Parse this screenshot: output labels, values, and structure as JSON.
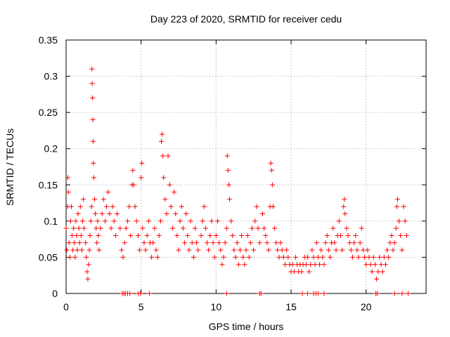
{
  "chart_data": {
    "type": "scatter",
    "title": "Day 223 of 2020, SRMTID for receiver cedu",
    "xlabel": "GPS time / hours",
    "ylabel": "SRMTID / TECUs",
    "xlim": [
      0,
      24
    ],
    "ylim": [
      0,
      0.35
    ],
    "xticks": [
      0,
      5,
      10,
      15,
      20
    ],
    "xtick_labels": [
      "0",
      "5",
      "10",
      "15",
      "20"
    ],
    "yticks": [
      0,
      0.05,
      0.1,
      0.15,
      0.2,
      0.25,
      0.3,
      0.35
    ],
    "ytick_labels": [
      "0",
      "0.05",
      "0.1",
      "0.15",
      "0.2",
      "0.25",
      "0.3",
      "0.35"
    ],
    "grid": true,
    "marker": "plus",
    "color": "#ff0000",
    "series": [
      {
        "name": "SRMTID",
        "points": [
          [
            0.0,
            0.09
          ],
          [
            0.05,
            0.06
          ],
          [
            0.1,
            0.12
          ],
          [
            0.12,
            0.16
          ],
          [
            0.15,
            0.14
          ],
          [
            0.2,
            0.07
          ],
          [
            0.25,
            0.05
          ],
          [
            0.3,
            0.1
          ],
          [
            0.35,
            0.12
          ],
          [
            0.4,
            0.08
          ],
          [
            0.45,
            0.06
          ],
          [
            0.5,
            0.09
          ],
          [
            0.55,
            0.07
          ],
          [
            0.6,
            0.05
          ],
          [
            0.65,
            0.1
          ],
          [
            0.7,
            0.08
          ],
          [
            0.75,
            0.06
          ],
          [
            0.8,
            0.11
          ],
          [
            0.85,
            0.09
          ],
          [
            0.9,
            0.07
          ],
          [
            0.95,
            0.12
          ],
          [
            1.0,
            0.08
          ],
          [
            1.05,
            0.06
          ],
          [
            1.1,
            0.1
          ],
          [
            1.15,
            0.13
          ],
          [
            1.2,
            0.09
          ],
          [
            1.3,
            0.07
          ],
          [
            1.35,
            0.05
          ],
          [
            1.4,
            0.03
          ],
          [
            1.45,
            0.02
          ],
          [
            1.5,
            0.04
          ],
          [
            1.55,
            0.06
          ],
          [
            1.6,
            0.08
          ],
          [
            1.65,
            0.1
          ],
          [
            1.7,
            0.12
          ],
          [
            1.72,
            0.31
          ],
          [
            1.74,
            0.29
          ],
          [
            1.76,
            0.27
          ],
          [
            1.78,
            0.24
          ],
          [
            1.8,
            0.21
          ],
          [
            1.82,
            0.18
          ],
          [
            1.85,
            0.16
          ],
          [
            1.9,
            0.13
          ],
          [
            1.95,
            0.11
          ],
          [
            2.0,
            0.09
          ],
          [
            2.05,
            0.07
          ],
          [
            2.1,
            0.1
          ],
          [
            2.15,
            0.08
          ],
          [
            2.2,
            0.06
          ],
          [
            2.3,
            0.09
          ],
          [
            2.4,
            0.11
          ],
          [
            2.5,
            0.13
          ],
          [
            2.6,
            0.1
          ],
          [
            2.7,
            0.12
          ],
          [
            2.8,
            0.14
          ],
          [
            2.9,
            0.11
          ],
          [
            3.0,
            0.09
          ],
          [
            3.1,
            0.12
          ],
          [
            3.2,
            0.1
          ],
          [
            3.3,
            0.08
          ],
          [
            3.4,
            0.11
          ],
          [
            3.6,
            0.09
          ],
          [
            3.7,
            0.06
          ],
          [
            3.8,
            0.05
          ],
          [
            3.9,
            0.07
          ],
          [
            4.0,
            0.09
          ],
          [
            4.1,
            0.1
          ],
          [
            4.2,
            0.12
          ],
          [
            4.3,
            0.08
          ],
          [
            4.4,
            0.15
          ],
          [
            4.45,
            0.17
          ],
          [
            4.5,
            0.15
          ],
          [
            4.6,
            0.12
          ],
          [
            4.7,
            0.1
          ],
          [
            4.8,
            0.08
          ],
          [
            4.9,
            0.06
          ],
          [
            5.0,
            0.16
          ],
          [
            5.05,
            0.18
          ],
          [
            5.1,
            0.09
          ],
          [
            5.2,
            0.07
          ],
          [
            5.3,
            0.06
          ],
          [
            5.4,
            0.08
          ],
          [
            5.5,
            0.1
          ],
          [
            5.6,
            0.07
          ],
          [
            5.7,
            0.05
          ],
          [
            5.8,
            0.07
          ],
          [
            5.9,
            0.09
          ],
          [
            6.0,
            0.06
          ],
          [
            6.1,
            0.05
          ],
          [
            6.2,
            0.08
          ],
          [
            6.3,
            0.1
          ],
          [
            6.35,
            0.21
          ],
          [
            6.4,
            0.22
          ],
          [
            6.45,
            0.19
          ],
          [
            6.5,
            0.16
          ],
          [
            6.6,
            0.13
          ],
          [
            6.7,
            0.11
          ],
          [
            6.8,
            0.19
          ],
          [
            6.9,
            0.15
          ],
          [
            7.0,
            0.12
          ],
          [
            7.1,
            0.09
          ],
          [
            7.2,
            0.14
          ],
          [
            7.3,
            0.11
          ],
          [
            7.4,
            0.08
          ],
          [
            7.5,
            0.06
          ],
          [
            7.6,
            0.1
          ],
          [
            7.7,
            0.12
          ],
          [
            7.8,
            0.09
          ],
          [
            7.9,
            0.07
          ],
          [
            8.0,
            0.11
          ],
          [
            8.1,
            0.08
          ],
          [
            8.2,
            0.06
          ],
          [
            8.3,
            0.1
          ],
          [
            8.4,
            0.07
          ],
          [
            8.5,
            0.05
          ],
          [
            8.6,
            0.09
          ],
          [
            8.7,
            0.07
          ],
          [
            8.8,
            0.06
          ],
          [
            9.0,
            0.08
          ],
          [
            9.1,
            0.1
          ],
          [
            9.2,
            0.12
          ],
          [
            9.3,
            0.09
          ],
          [
            9.4,
            0.07
          ],
          [
            9.5,
            0.06
          ],
          [
            9.6,
            0.08
          ],
          [
            9.7,
            0.1
          ],
          [
            9.8,
            0.07
          ],
          [
            9.9,
            0.05
          ],
          [
            10.0,
            0.08
          ],
          [
            10.1,
            0.1
          ],
          [
            10.2,
            0.07
          ],
          [
            10.3,
            0.06
          ],
          [
            10.4,
            0.04
          ],
          [
            10.5,
            0.05
          ],
          [
            10.6,
            0.07
          ],
          [
            10.7,
            0.09
          ],
          [
            10.75,
            0.19
          ],
          [
            10.8,
            0.17
          ],
          [
            10.85,
            0.15
          ],
          [
            10.9,
            0.13
          ],
          [
            11.0,
            0.1
          ],
          [
            11.1,
            0.08
          ],
          [
            11.2,
            0.06
          ],
          [
            11.3,
            0.05
          ],
          [
            11.4,
            0.07
          ],
          [
            11.5,
            0.04
          ],
          [
            11.6,
            0.06
          ],
          [
            11.7,
            0.08
          ],
          [
            11.8,
            0.05
          ],
          [
            11.9,
            0.04
          ],
          [
            12.0,
            0.06
          ],
          [
            12.1,
            0.08
          ],
          [
            12.2,
            0.05
          ],
          [
            12.3,
            0.07
          ],
          [
            12.4,
            0.09
          ],
          [
            12.5,
            0.06
          ],
          [
            12.6,
            0.1
          ],
          [
            12.7,
            0.12
          ],
          [
            12.8,
            0.09
          ],
          [
            12.9,
            0.07
          ],
          [
            13.1,
            0.11
          ],
          [
            13.2,
            0.09
          ],
          [
            13.3,
            0.08
          ],
          [
            13.4,
            0.07
          ],
          [
            13.5,
            0.06
          ],
          [
            13.6,
            0.12
          ],
          [
            13.65,
            0.18
          ],
          [
            13.7,
            0.17
          ],
          [
            13.75,
            0.15
          ],
          [
            13.8,
            0.12
          ],
          [
            13.9,
            0.09
          ],
          [
            14.0,
            0.07
          ],
          [
            14.1,
            0.06
          ],
          [
            14.2,
            0.05
          ],
          [
            14.3,
            0.07
          ],
          [
            14.4,
            0.06
          ],
          [
            14.5,
            0.05
          ],
          [
            14.6,
            0.04
          ],
          [
            14.7,
            0.06
          ],
          [
            14.8,
            0.05
          ],
          [
            14.9,
            0.04
          ],
          [
            15.0,
            0.03
          ],
          [
            15.1,
            0.04
          ],
          [
            15.2,
            0.03
          ],
          [
            15.3,
            0.05
          ],
          [
            15.4,
            0.04
          ],
          [
            15.5,
            0.03
          ],
          [
            15.6,
            0.04
          ],
          [
            15.7,
            0.03
          ],
          [
            15.8,
            0.04
          ],
          [
            15.9,
            0.05
          ],
          [
            16.0,
            0.04
          ],
          [
            16.1,
            0.05
          ],
          [
            16.2,
            0.03
          ],
          [
            16.3,
            0.04
          ],
          [
            16.4,
            0.06
          ],
          [
            16.5,
            0.05
          ],
          [
            16.6,
            0.04
          ],
          [
            16.7,
            0.07
          ],
          [
            16.8,
            0.05
          ],
          [
            16.9,
            0.04
          ],
          [
            17.0,
            0.06
          ],
          [
            17.1,
            0.05
          ],
          [
            17.2,
            0.04
          ],
          [
            17.3,
            0.07
          ],
          [
            17.4,
            0.08
          ],
          [
            17.5,
            0.06
          ],
          [
            17.6,
            0.05
          ],
          [
            17.7,
            0.07
          ],
          [
            17.8,
            0.09
          ],
          [
            17.9,
            0.07
          ],
          [
            18.0,
            0.06
          ],
          [
            18.1,
            0.08
          ],
          [
            18.2,
            0.1
          ],
          [
            18.3,
            0.08
          ],
          [
            18.4,
            0.06
          ],
          [
            18.5,
            0.12
          ],
          [
            18.55,
            0.13
          ],
          [
            18.6,
            0.11
          ],
          [
            18.7,
            0.09
          ],
          [
            18.8,
            0.08
          ],
          [
            18.9,
            0.07
          ],
          [
            19.0,
            0.06
          ],
          [
            19.1,
            0.05
          ],
          [
            19.2,
            0.07
          ],
          [
            19.3,
            0.08
          ],
          [
            19.4,
            0.06
          ],
          [
            19.5,
            0.05
          ],
          [
            19.6,
            0.07
          ],
          [
            19.7,
            0.09
          ],
          [
            19.8,
            0.06
          ],
          [
            19.9,
            0.05
          ],
          [
            20.0,
            0.04
          ],
          [
            20.1,
            0.06
          ],
          [
            20.2,
            0.05
          ],
          [
            20.3,
            0.04
          ],
          [
            20.4,
            0.03
          ],
          [
            20.5,
            0.05
          ],
          [
            20.6,
            0.04
          ],
          [
            20.7,
            0.02
          ],
          [
            20.8,
            0.03
          ],
          [
            20.9,
            0.05
          ],
          [
            21.0,
            0.04
          ],
          [
            21.1,
            0.03
          ],
          [
            21.2,
            0.05
          ],
          [
            21.3,
            0.04
          ],
          [
            21.4,
            0.06
          ],
          [
            21.5,
            0.05
          ],
          [
            21.6,
            0.07
          ],
          [
            21.7,
            0.08
          ],
          [
            21.8,
            0.06
          ],
          [
            21.9,
            0.07
          ],
          [
            22.0,
            0.09
          ],
          [
            22.05,
            0.12
          ],
          [
            22.1,
            0.13
          ],
          [
            22.2,
            0.1
          ],
          [
            22.3,
            0.08
          ],
          [
            22.4,
            0.06
          ],
          [
            22.5,
            0.12
          ],
          [
            22.6,
            0.1
          ],
          [
            22.7,
            0.08
          ]
        ]
      }
    ],
    "zero_points": [
      3.75,
      3.85,
      3.95,
      4.1,
      4.25,
      4.8,
      4.95,
      5.55,
      10.7,
      12.9,
      13.0,
      15.75,
      16.1,
      16.5,
      16.65,
      16.8,
      17.2,
      20.65,
      20.75,
      21.9,
      22.4,
      22.8
    ]
  }
}
